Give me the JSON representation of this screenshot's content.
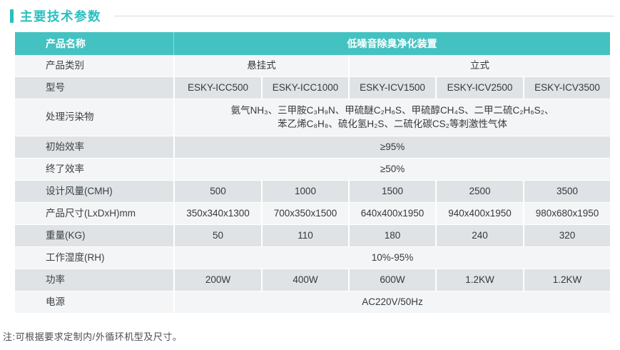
{
  "page": {
    "title": "主要技术参数",
    "note": "注:可根据要求定制内/外循环机型及尺寸。"
  },
  "colors": {
    "accent_teal": "#44c2c2",
    "title_teal": "#2abfbf",
    "row_light": "#f4f5f6",
    "row_gray": "#dfe3e5"
  },
  "table": {
    "header": {
      "label": "产品名称",
      "value": "低噪音除臭净化装置"
    },
    "rows": {
      "category": {
        "label": "产品类别",
        "hanging": "悬挂式",
        "vertical": "立式"
      },
      "model": {
        "label": "型号",
        "values": [
          "ESKY-ICC500",
          "ESKY-ICC1000",
          "ESKY-ICV1500",
          "ESKY-ICV2500",
          "ESKY-ICV3500"
        ]
      },
      "pollutants": {
        "label": "处理污染物",
        "line1": "氨气NH₃、三甲胺C₃H₉N、甲硫醚C₂H₆S、甲硫醇CH₄S、二甲二硫C₂H₆S₂、",
        "line2": "苯乙烯C₈H₈、硫化氢H₂S、二硫化碳CS₂等刺激性气体"
      },
      "initial_efficiency": {
        "label": "初始效率",
        "value": "≥95%"
      },
      "final_efficiency": {
        "label": "终了效率",
        "value": "≥50%"
      },
      "airflow": {
        "label": "设计风量(CMH)",
        "values": [
          "500",
          "1000",
          "1500",
          "2500",
          "3500"
        ]
      },
      "dimensions": {
        "label": "产品尺寸(LxDxH)mm",
        "values": [
          "350x340x1300",
          "700x350x1500",
          "640x400x1950",
          "940x400x1950",
          "980x680x1950"
        ]
      },
      "weight": {
        "label": "重量(KG)",
        "values": [
          "50",
          "110",
          "180",
          "240",
          "320"
        ]
      },
      "humidity": {
        "label": "工作湿度(RH)",
        "value": "10%-95%"
      },
      "power": {
        "label": "功率",
        "values": [
          "200W",
          "400W",
          "600W",
          "1.2KW",
          "1.2KW"
        ]
      },
      "power_supply": {
        "label": "电源",
        "value": "AC220V/50Hz"
      }
    }
  }
}
